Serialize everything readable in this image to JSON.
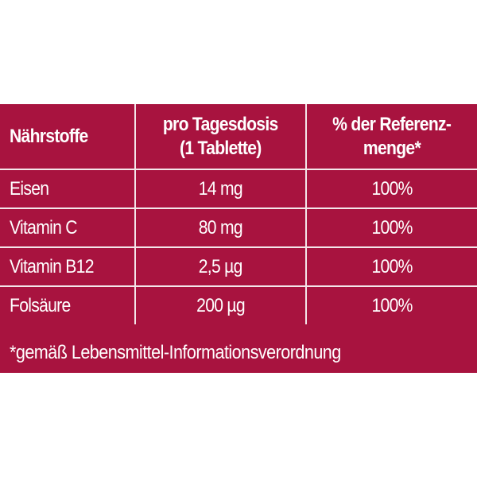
{
  "table": {
    "headers": [
      "Nährstoffe",
      "pro Tagesdosis (1 Tablette)",
      "% der Referenz-menge*"
    ],
    "header_lines": {
      "col2": [
        "pro Tagesdosis",
        "(1 Tablette)"
      ],
      "col3": [
        "% der Referenz-",
        "menge*"
      ]
    },
    "rows": [
      {
        "name": "Eisen",
        "dose": "14 mg",
        "ref": "100%"
      },
      {
        "name": "Vitamin C",
        "dose": "80 mg",
        "ref": "100%"
      },
      {
        "name": "Vitamin B12",
        "dose": "2,5 µg",
        "ref": "100%"
      },
      {
        "name": "Folsäure",
        "dose": "200 µg",
        "ref": "100%"
      }
    ]
  },
  "footnote": "*gemäß Lebensmittel-Informationsverordnung",
  "colors": {
    "background": "#a8133f",
    "text": "#ffffff"
  }
}
